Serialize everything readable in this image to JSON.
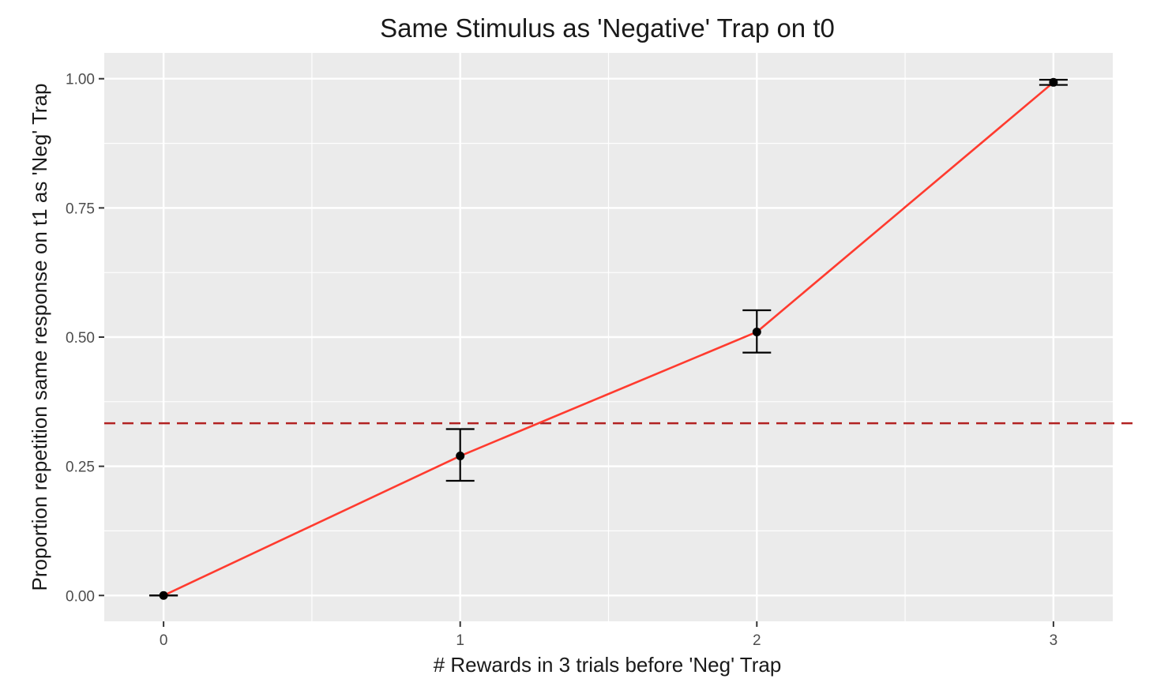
{
  "chart_data": {
    "type": "line",
    "title": "Same Stimulus as 'Negative' Trap on t0",
    "xlabel": "# Rewards in 3 trials before 'Neg' Trap",
    "ylabel": "Proportion repetition same response on t1 as 'Neg' Trap",
    "xlim": [
      -0.2,
      3.2
    ],
    "ylim": [
      -0.05,
      1.05
    ],
    "x_ticks": [
      0,
      1,
      2,
      3
    ],
    "x_tick_labels": [
      "0",
      "1",
      "2",
      "3"
    ],
    "y_ticks": [
      0,
      0.25,
      0.5,
      0.75,
      1
    ],
    "y_tick_labels": [
      "0.00",
      "0.25",
      "0.50",
      "0.75",
      "1.00"
    ],
    "x_minor_ticks": [
      0.5,
      1.5,
      2.5
    ],
    "y_minor_ticks": [
      0.125,
      0.375,
      0.625,
      0.875
    ],
    "grid": true,
    "series": [
      {
        "x": [
          0,
          1,
          2,
          3
        ],
        "y": [
          0.0,
          0.27,
          0.51,
          0.993
        ],
        "error_lower": [
          0.0,
          0.222,
          0.47,
          0.988
        ],
        "error_upper": [
          0.0,
          0.322,
          0.552,
          0.998
        ],
        "line_color": "#ff3b2f",
        "point_color": "#000000"
      }
    ],
    "reference_line": {
      "orientation": "horizontal",
      "y": 0.3333,
      "style": "dashed",
      "color": "#b22222"
    },
    "colors": {
      "panel_background": "#ebebeb",
      "grid": "#ffffff",
      "tick": "#333333"
    }
  }
}
